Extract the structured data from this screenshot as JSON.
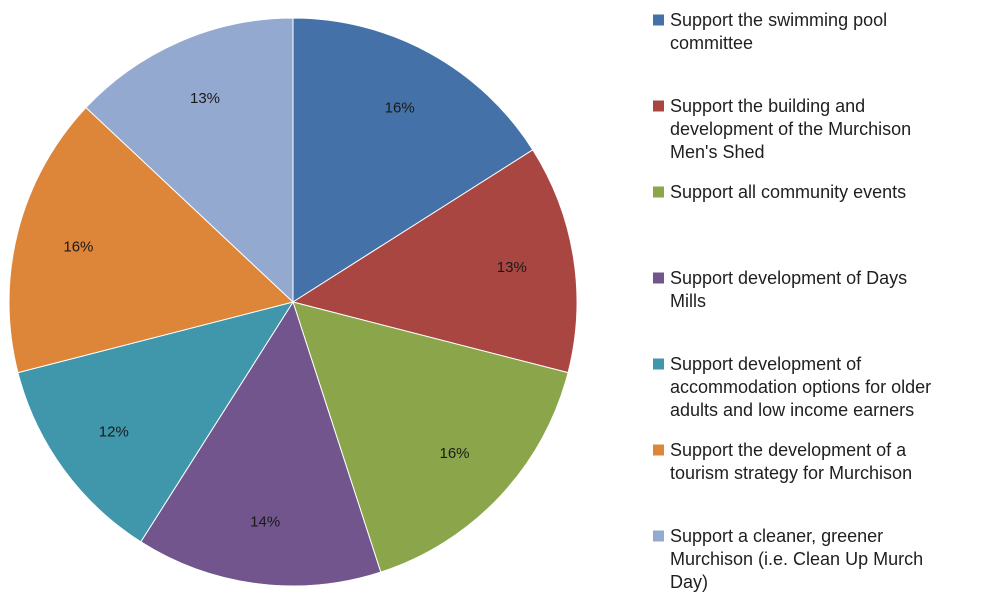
{
  "chart_data": {
    "type": "pie",
    "title": "",
    "legend_position": "right",
    "start": "top",
    "direction": "clockwise",
    "slices": [
      {
        "label": "Support the swimming pool committee",
        "legend_lines": [
          "Support the swimming pool",
          "committee"
        ],
        "value": 16,
        "display": "16%",
        "color": "#4472a8"
      },
      {
        "label": "Support the building and development of the Murchison Men's Shed",
        "legend_lines": [
          "Support the building and",
          "development of the Murchison",
          "Men's Shed"
        ],
        "value": 13,
        "display": "13%",
        "color": "#aa4642"
      },
      {
        "label": "Support all community events",
        "legend_lines": [
          "Support all community events"
        ],
        "value": 16,
        "display": "16%",
        "color": "#8ba64a"
      },
      {
        "label": "Support development of Days Mills",
        "legend_lines": [
          "Support development of Days",
          "Mills"
        ],
        "value": 14,
        "display": "14%",
        "color": "#71558c"
      },
      {
        "label": "Support development of accommodation options for older adults and low income earners",
        "legend_lines": [
          "Support development of",
          "accommodation options for older",
          "adults and low income earners"
        ],
        "value": 12,
        "display": "12%",
        "color": "#4097ab"
      },
      {
        "label": "Support the development of a tourism strategy for Murchison",
        "legend_lines": [
          "Support the development of a",
          "tourism strategy for Murchison"
        ],
        "value": 16,
        "display": "16%",
        "color": "#dd8538"
      },
      {
        "label": "Support a cleaner, greener Murchison (i.e. Clean Up Murch Day)",
        "legend_lines": [
          "Support a cleaner, greener",
          "Murchison (i.e. Clean Up Murch",
          "Day)"
        ],
        "value": 13,
        "display": "13%",
        "color": "#94a9cf"
      }
    ]
  }
}
